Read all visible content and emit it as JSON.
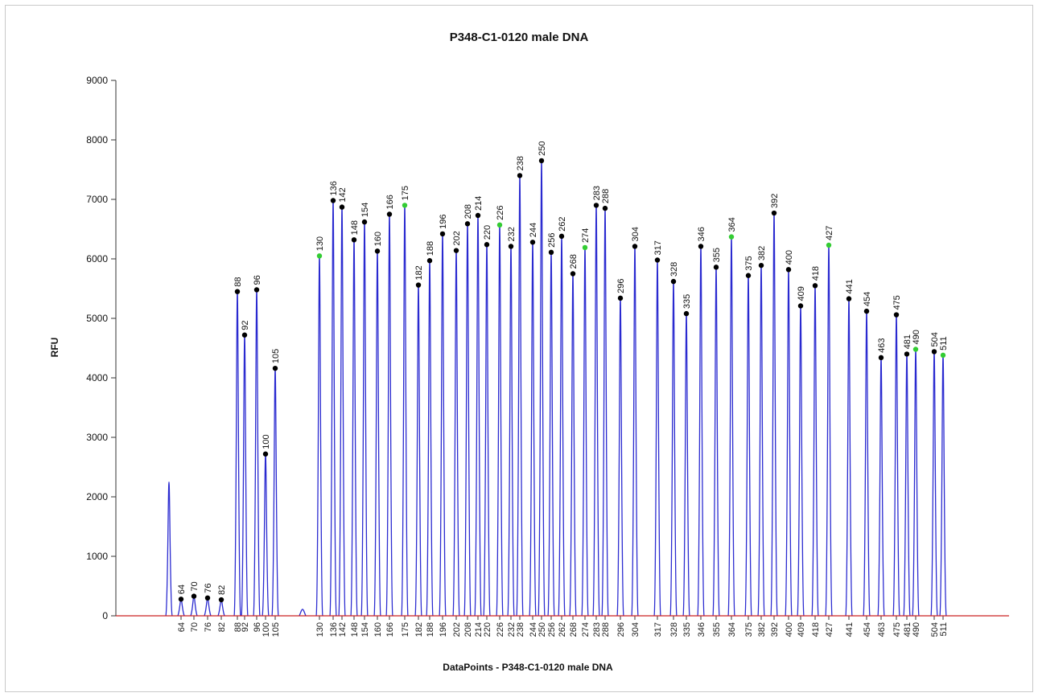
{
  "chart_data": {
    "type": "line",
    "title": "P348-C1-0120 male DNA",
    "xlabel": "DataPoints - P348-C1-0120 male DNA",
    "ylabel": "RFU",
    "ylim": [
      0,
      9000
    ],
    "yticks": [
      0,
      1000,
      2000,
      3000,
      4000,
      5000,
      6000,
      7000,
      8000,
      9000
    ],
    "grid": false,
    "colors": {
      "trace": "#2a2ad0",
      "baseline": "#cc2222",
      "marker": "#000000",
      "marker_highlight": "#33cc33"
    },
    "unlabeled_peaks": [
      {
        "x": 40,
        "rfu": 2250
      },
      {
        "x": 112,
        "rfu": 110
      }
    ],
    "peaks": [
      {
        "label": "64",
        "rfu": 280,
        "highlight": false
      },
      {
        "label": "70",
        "rfu": 330,
        "highlight": false
      },
      {
        "label": "76",
        "rfu": 300,
        "highlight": false
      },
      {
        "label": "82",
        "rfu": 270,
        "highlight": false
      },
      {
        "label": "88",
        "rfu": 5450,
        "highlight": false
      },
      {
        "label": "92",
        "rfu": 4720,
        "highlight": false
      },
      {
        "label": "96",
        "rfu": 5480,
        "highlight": false
      },
      {
        "label": "100",
        "rfu": 2720,
        "highlight": false
      },
      {
        "label": "105",
        "rfu": 4160,
        "highlight": false
      },
      {
        "label": "130",
        "rfu": 6050,
        "highlight": true
      },
      {
        "label": "136",
        "rfu": 6980,
        "highlight": false
      },
      {
        "label": "142",
        "rfu": 6870,
        "highlight": false
      },
      {
        "label": "148",
        "rfu": 6320,
        "highlight": false
      },
      {
        "label": "154",
        "rfu": 6620,
        "highlight": false
      },
      {
        "label": "160",
        "rfu": 6130,
        "highlight": false
      },
      {
        "label": "166",
        "rfu": 6750,
        "highlight": false
      },
      {
        "label": "175",
        "rfu": 6900,
        "highlight": true
      },
      {
        "label": "182",
        "rfu": 5560,
        "highlight": false
      },
      {
        "label": "188",
        "rfu": 5970,
        "highlight": false
      },
      {
        "label": "196",
        "rfu": 6420,
        "highlight": false
      },
      {
        "label": "202",
        "rfu": 6140,
        "highlight": false
      },
      {
        "label": "208",
        "rfu": 6590,
        "highlight": false
      },
      {
        "label": "214",
        "rfu": 6730,
        "highlight": false
      },
      {
        "label": "220",
        "rfu": 6240,
        "highlight": false
      },
      {
        "label": "226",
        "rfu": 6570,
        "highlight": true
      },
      {
        "label": "232",
        "rfu": 6210,
        "highlight": false
      },
      {
        "label": "238",
        "rfu": 7400,
        "highlight": false
      },
      {
        "label": "244",
        "rfu": 6280,
        "highlight": false
      },
      {
        "label": "250",
        "rfu": 7650,
        "highlight": false
      },
      {
        "label": "256",
        "rfu": 6110,
        "highlight": false
      },
      {
        "label": "262",
        "rfu": 6380,
        "highlight": false
      },
      {
        "label": "268",
        "rfu": 5750,
        "highlight": false
      },
      {
        "label": "274",
        "rfu": 6190,
        "highlight": true
      },
      {
        "label": "283",
        "rfu": 6900,
        "highlight": false
      },
      {
        "label": "288",
        "rfu": 6850,
        "highlight": false
      },
      {
        "label": "296",
        "rfu": 5340,
        "highlight": false
      },
      {
        "label": "304",
        "rfu": 6210,
        "highlight": false
      },
      {
        "label": "317",
        "rfu": 5980,
        "highlight": false
      },
      {
        "label": "328",
        "rfu": 5620,
        "highlight": false
      },
      {
        "label": "335",
        "rfu": 5080,
        "highlight": false
      },
      {
        "label": "346",
        "rfu": 6210,
        "highlight": false
      },
      {
        "label": "355",
        "rfu": 5860,
        "highlight": false
      },
      {
        "label": "364",
        "rfu": 6370,
        "highlight": true
      },
      {
        "label": "375",
        "rfu": 5720,
        "highlight": false
      },
      {
        "label": "382",
        "rfu": 5890,
        "highlight": false
      },
      {
        "label": "392",
        "rfu": 6770,
        "highlight": false
      },
      {
        "label": "400",
        "rfu": 5820,
        "highlight": false
      },
      {
        "label": "409",
        "rfu": 5210,
        "highlight": false
      },
      {
        "label": "418",
        "rfu": 5550,
        "highlight": false
      },
      {
        "label": "427",
        "rfu": 6230,
        "highlight": true
      },
      {
        "label": "441",
        "rfu": 5330,
        "highlight": false
      },
      {
        "label": "454",
        "rfu": 5120,
        "highlight": false
      },
      {
        "label": "463",
        "rfu": 4340,
        "highlight": false
      },
      {
        "label": "475",
        "rfu": 5060,
        "highlight": false
      },
      {
        "label": "481",
        "rfu": 4400,
        "highlight": false
      },
      {
        "label": "490",
        "rfu": 4480,
        "highlight": true
      },
      {
        "label": "504",
        "rfu": 4440,
        "highlight": false
      },
      {
        "label": "511",
        "rfu": 4380,
        "highlight": true
      }
    ]
  }
}
